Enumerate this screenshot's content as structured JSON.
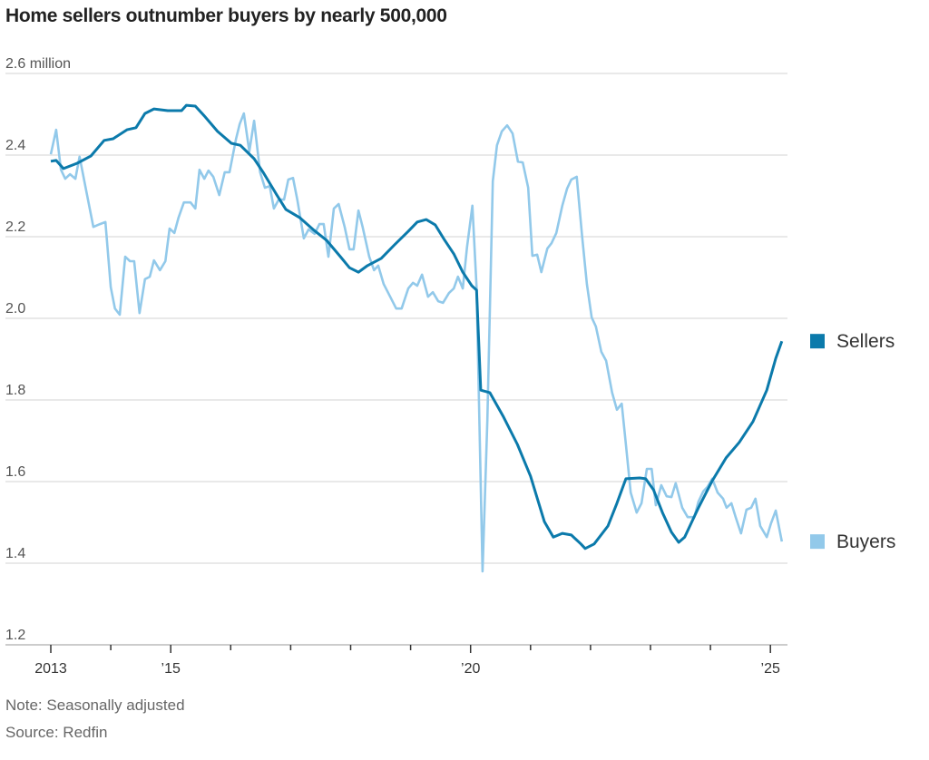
{
  "chart_data": {
    "type": "line",
    "title": "Home sellers outnumber buyers by nearly 500,000",
    "y_unit_label": "2.6 million",
    "ylim": [
      1.2,
      2.6
    ],
    "yticks": [
      1.2,
      1.4,
      1.6,
      1.8,
      2.0,
      2.2,
      2.4,
      2.6
    ],
    "ytick_labels": [
      "1.2",
      "1.4",
      "1.6",
      "1.8",
      "2.0",
      "2.2",
      "2.4",
      "2.6 million"
    ],
    "xlim": [
      2013,
      2025.3
    ],
    "xticks": [
      2013,
      2014,
      2015,
      2016,
      2017,
      2018,
      2019,
      2020,
      2021,
      2022,
      2023,
      2024,
      2025
    ],
    "xtick_labels": [
      {
        "x": 2013,
        "label": "2013"
      },
      {
        "x": 2015,
        "label": "’15"
      },
      {
        "x": 2020,
        "label": "’20"
      },
      {
        "x": 2025,
        "label": "’25"
      }
    ],
    "grid": true,
    "legend_placement": "right, at line ends",
    "note": "Note: Seasonally adjusted",
    "source": "Source: Redfin",
    "series": [
      {
        "name": "Sellers",
        "color": "#0b7aab",
        "points": [
          [
            2013.0,
            2.385
          ],
          [
            2013.09,
            2.387
          ],
          [
            2013.21,
            2.367
          ],
          [
            2013.44,
            2.38
          ],
          [
            2013.67,
            2.398
          ],
          [
            2013.89,
            2.436
          ],
          [
            2014.04,
            2.44
          ],
          [
            2014.27,
            2.462
          ],
          [
            2014.42,
            2.467
          ],
          [
            2014.57,
            2.502
          ],
          [
            2014.72,
            2.513
          ],
          [
            2014.95,
            2.509
          ],
          [
            2015.18,
            2.509
          ],
          [
            2015.26,
            2.522
          ],
          [
            2015.41,
            2.52
          ],
          [
            2015.56,
            2.496
          ],
          [
            2015.78,
            2.458
          ],
          [
            2016.01,
            2.429
          ],
          [
            2016.16,
            2.424
          ],
          [
            2016.39,
            2.391
          ],
          [
            2016.54,
            2.358
          ],
          [
            2016.77,
            2.302
          ],
          [
            2016.92,
            2.267
          ],
          [
            2017.15,
            2.247
          ],
          [
            2017.37,
            2.218
          ],
          [
            2017.6,
            2.191
          ],
          [
            2017.83,
            2.151
          ],
          [
            2017.98,
            2.124
          ],
          [
            2018.13,
            2.113
          ],
          [
            2018.28,
            2.129
          ],
          [
            2018.51,
            2.147
          ],
          [
            2018.73,
            2.18
          ],
          [
            2018.96,
            2.213
          ],
          [
            2019.11,
            2.236
          ],
          [
            2019.26,
            2.242
          ],
          [
            2019.41,
            2.229
          ],
          [
            2019.57,
            2.191
          ],
          [
            2019.72,
            2.158
          ],
          [
            2019.87,
            2.113
          ],
          [
            2020.02,
            2.08
          ],
          [
            2020.1,
            2.069
          ],
          [
            2020.17,
            1.824
          ],
          [
            2020.32,
            1.818
          ],
          [
            2020.55,
            1.758
          ],
          [
            2020.78,
            1.691
          ],
          [
            2021.0,
            1.613
          ],
          [
            2021.23,
            1.502
          ],
          [
            2021.38,
            1.464
          ],
          [
            2021.53,
            1.473
          ],
          [
            2021.68,
            1.469
          ],
          [
            2021.84,
            1.447
          ],
          [
            2021.91,
            1.436
          ],
          [
            2022.06,
            1.447
          ],
          [
            2022.29,
            1.491
          ],
          [
            2022.44,
            1.547
          ],
          [
            2022.59,
            1.607
          ],
          [
            2022.82,
            1.609
          ],
          [
            2022.92,
            1.607
          ],
          [
            2023.05,
            1.58
          ],
          [
            2023.2,
            1.524
          ],
          [
            2023.35,
            1.476
          ],
          [
            2023.47,
            1.451
          ],
          [
            2023.57,
            1.464
          ],
          [
            2023.8,
            1.536
          ],
          [
            2024.03,
            1.602
          ],
          [
            2024.26,
            1.658
          ],
          [
            2024.48,
            1.696
          ],
          [
            2024.71,
            1.747
          ],
          [
            2024.94,
            1.824
          ],
          [
            2025.09,
            1.902
          ],
          [
            2025.19,
            1.944
          ]
        ]
      },
      {
        "name": "Buyers",
        "color": "#92c9ea",
        "points": [
          [
            2013.0,
            2.402
          ],
          [
            2013.09,
            2.462
          ],
          [
            2013.17,
            2.364
          ],
          [
            2013.24,
            2.342
          ],
          [
            2013.32,
            2.353
          ],
          [
            2013.41,
            2.342
          ],
          [
            2013.48,
            2.396
          ],
          [
            2013.59,
            2.313
          ],
          [
            2013.71,
            2.224
          ],
          [
            2013.82,
            2.231
          ],
          [
            2013.91,
            2.236
          ],
          [
            2014.0,
            2.076
          ],
          [
            2014.07,
            2.024
          ],
          [
            2014.15,
            2.009
          ],
          [
            2014.24,
            2.151
          ],
          [
            2014.32,
            2.14
          ],
          [
            2014.39,
            2.14
          ],
          [
            2014.48,
            2.013
          ],
          [
            2014.57,
            2.096
          ],
          [
            2014.65,
            2.102
          ],
          [
            2014.72,
            2.142
          ],
          [
            2014.82,
            2.118
          ],
          [
            2014.91,
            2.14
          ],
          [
            2014.98,
            2.22
          ],
          [
            2015.06,
            2.209
          ],
          [
            2015.13,
            2.247
          ],
          [
            2015.22,
            2.284
          ],
          [
            2015.33,
            2.284
          ],
          [
            2015.41,
            2.269
          ],
          [
            2015.48,
            2.364
          ],
          [
            2015.56,
            2.342
          ],
          [
            2015.63,
            2.362
          ],
          [
            2015.71,
            2.347
          ],
          [
            2015.81,
            2.302
          ],
          [
            2015.9,
            2.358
          ],
          [
            2015.98,
            2.358
          ],
          [
            2016.09,
            2.44
          ],
          [
            2016.15,
            2.476
          ],
          [
            2016.22,
            2.502
          ],
          [
            2016.31,
            2.409
          ],
          [
            2016.39,
            2.484
          ],
          [
            2016.49,
            2.358
          ],
          [
            2016.57,
            2.32
          ],
          [
            2016.65,
            2.324
          ],
          [
            2016.72,
            2.269
          ],
          [
            2016.8,
            2.291
          ],
          [
            2016.89,
            2.291
          ],
          [
            2016.96,
            2.34
          ],
          [
            2017.04,
            2.344
          ],
          [
            2017.11,
            2.291
          ],
          [
            2017.22,
            2.196
          ],
          [
            2017.3,
            2.218
          ],
          [
            2017.4,
            2.207
          ],
          [
            2017.48,
            2.231
          ],
          [
            2017.55,
            2.231
          ],
          [
            2017.63,
            2.151
          ],
          [
            2017.72,
            2.269
          ],
          [
            2017.8,
            2.28
          ],
          [
            2017.9,
            2.224
          ],
          [
            2017.98,
            2.169
          ],
          [
            2018.05,
            2.169
          ],
          [
            2018.13,
            2.264
          ],
          [
            2018.2,
            2.224
          ],
          [
            2018.31,
            2.151
          ],
          [
            2018.39,
            2.118
          ],
          [
            2018.46,
            2.129
          ],
          [
            2018.55,
            2.084
          ],
          [
            2018.66,
            2.053
          ],
          [
            2018.76,
            2.024
          ],
          [
            2018.85,
            2.024
          ],
          [
            2018.96,
            2.073
          ],
          [
            2019.04,
            2.087
          ],
          [
            2019.11,
            2.08
          ],
          [
            2019.19,
            2.107
          ],
          [
            2019.29,
            2.053
          ],
          [
            2019.37,
            2.064
          ],
          [
            2019.46,
            2.042
          ],
          [
            2019.54,
            2.038
          ],
          [
            2019.64,
            2.062
          ],
          [
            2019.72,
            2.073
          ],
          [
            2019.79,
            2.102
          ],
          [
            2019.87,
            2.073
          ],
          [
            2019.94,
            2.173
          ],
          [
            2020.03,
            2.276
          ],
          [
            2020.1,
            2.076
          ],
          [
            2020.2,
            1.38
          ],
          [
            2020.28,
            1.751
          ],
          [
            2020.37,
            2.336
          ],
          [
            2020.44,
            2.424
          ],
          [
            2020.52,
            2.458
          ],
          [
            2020.61,
            2.473
          ],
          [
            2020.7,
            2.453
          ],
          [
            2020.79,
            2.384
          ],
          [
            2020.87,
            2.382
          ],
          [
            2020.96,
            2.32
          ],
          [
            2021.03,
            2.153
          ],
          [
            2021.11,
            2.156
          ],
          [
            2021.18,
            2.113
          ],
          [
            2021.28,
            2.171
          ],
          [
            2021.35,
            2.184
          ],
          [
            2021.43,
            2.209
          ],
          [
            2021.53,
            2.276
          ],
          [
            2021.61,
            2.318
          ],
          [
            2021.68,
            2.34
          ],
          [
            2021.77,
            2.347
          ],
          [
            2021.86,
            2.202
          ],
          [
            2021.94,
            2.084
          ],
          [
            2022.02,
            2.002
          ],
          [
            2022.09,
            1.98
          ],
          [
            2022.18,
            1.918
          ],
          [
            2022.26,
            1.896
          ],
          [
            2022.36,
            1.818
          ],
          [
            2022.44,
            1.776
          ],
          [
            2022.52,
            1.791
          ],
          [
            2022.59,
            1.691
          ],
          [
            2022.67,
            1.573
          ],
          [
            2022.77,
            1.524
          ],
          [
            2022.85,
            1.547
          ],
          [
            2022.94,
            1.631
          ],
          [
            2023.02,
            1.631
          ],
          [
            2023.09,
            1.542
          ],
          [
            2023.18,
            1.591
          ],
          [
            2023.27,
            1.564
          ],
          [
            2023.35,
            1.562
          ],
          [
            2023.42,
            1.596
          ],
          [
            2023.53,
            1.536
          ],
          [
            2023.62,
            1.513
          ],
          [
            2023.73,
            1.513
          ],
          [
            2023.8,
            1.551
          ],
          [
            2023.88,
            1.576
          ],
          [
            2023.95,
            1.587
          ],
          [
            2024.03,
            1.607
          ],
          [
            2024.12,
            1.573
          ],
          [
            2024.21,
            1.558
          ],
          [
            2024.27,
            1.536
          ],
          [
            2024.35,
            1.547
          ],
          [
            2024.42,
            1.513
          ],
          [
            2024.51,
            1.473
          ],
          [
            2024.6,
            1.531
          ],
          [
            2024.68,
            1.536
          ],
          [
            2024.75,
            1.558
          ],
          [
            2024.83,
            1.491
          ],
          [
            2024.94,
            1.464
          ],
          [
            2025.01,
            1.498
          ],
          [
            2025.09,
            1.529
          ],
          [
            2025.19,
            1.453
          ]
        ]
      }
    ]
  }
}
